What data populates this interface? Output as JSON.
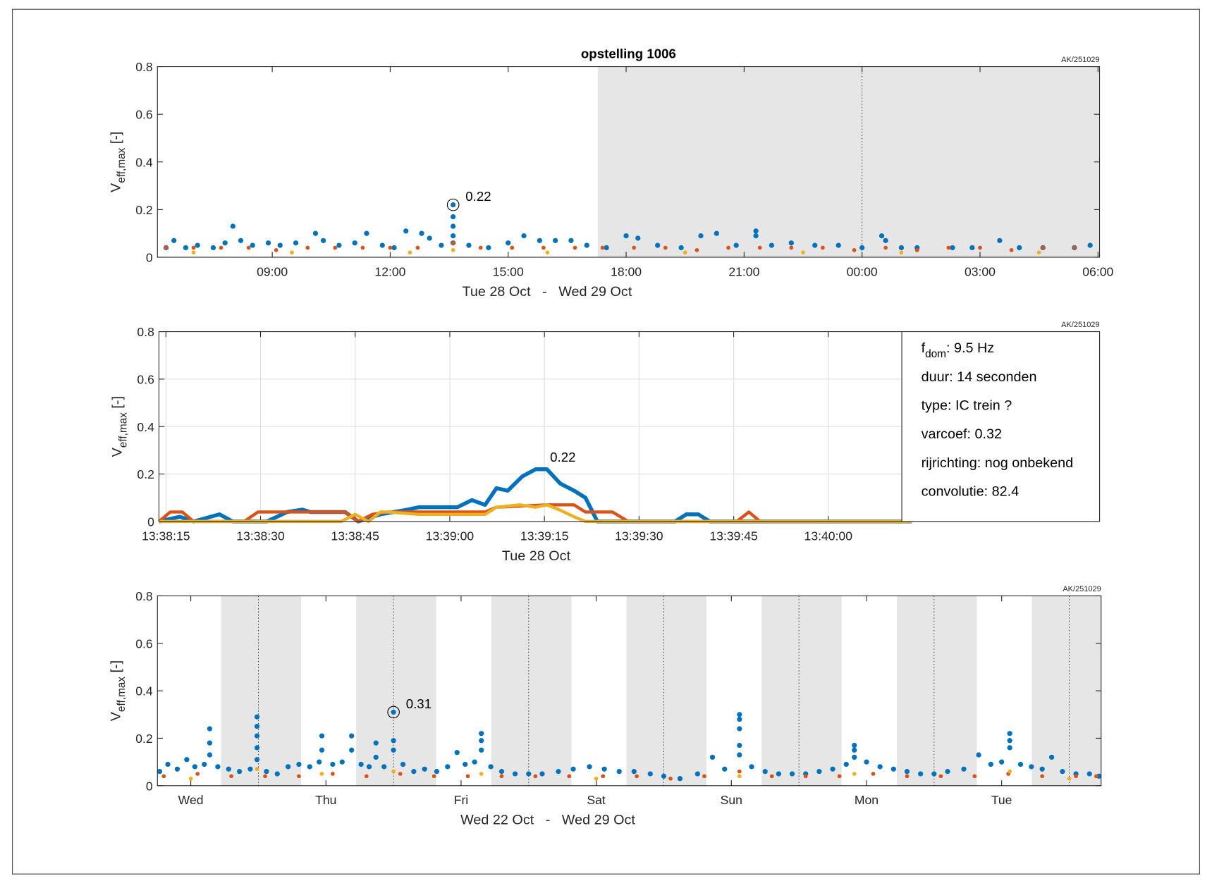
{
  "chart_data": [
    {
      "type": "scatter",
      "title": "opstelling 1006",
      "note": "AK/251029",
      "ylabel": {
        "symbol": "V",
        "subscript": "eff,max",
        "unit": "[-]"
      },
      "xlabel": "Tue 28 Oct   -   Wed 29 Oct",
      "xlim": [
        6.08,
        30.04
      ],
      "xticks": [
        {
          "value": 9,
          "label": "09:00"
        },
        {
          "value": 12,
          "label": "12:00"
        },
        {
          "value": 15,
          "label": "15:00"
        },
        {
          "value": 18,
          "label": "18:00"
        },
        {
          "value": 21,
          "label": "21:00"
        },
        {
          "value": 24,
          "label": "00:00"
        },
        {
          "value": 27,
          "label": "03:00"
        },
        {
          "value": 30,
          "label": "06:00"
        }
      ],
      "ylim": [
        0,
        0.8
      ],
      "yticks": [
        0,
        0.2,
        0.4,
        0.6,
        0.8
      ],
      "grid": false,
      "shade": [
        [
          17.28,
          30.04
        ]
      ],
      "vlines": [
        24
      ],
      "annotation": {
        "x": 13.6,
        "value": 0.22
      },
      "series": [
        {
          "color": "#0072BD",
          "x": [
            6.3,
            6.5,
            6.8,
            7.1,
            7.5,
            7.8,
            8.0,
            8.2,
            8.5,
            8.9,
            9.2,
            9.6,
            10.1,
            10.3,
            10.7,
            11.1,
            11.4,
            11.8,
            12.1,
            12.4,
            12.8,
            13.0,
            13.3,
            13.6,
            13.6,
            13.6,
            13.6,
            13.6,
            14.0,
            14.5,
            15.0,
            15.4,
            15.8,
            16.2,
            16.6,
            17.0,
            17.5,
            18.0,
            18.3,
            18.8,
            19.4,
            19.9,
            20.3,
            20.8,
            21.3,
            21.3,
            21.7,
            22.2,
            22.8,
            23.4,
            24.0,
            24.5,
            24.6,
            25.0,
            25.4,
            26.3,
            26.8,
            27.5,
            28.0,
            28.6,
            29.4,
            29.8
          ],
          "values": [
            0.04,
            0.07,
            0.04,
            0.05,
            0.04,
            0.06,
            0.13,
            0.07,
            0.05,
            0.06,
            0.05,
            0.06,
            0.1,
            0.07,
            0.05,
            0.06,
            0.1,
            0.05,
            0.04,
            0.11,
            0.1,
            0.08,
            0.05,
            0.22,
            0.17,
            0.13,
            0.09,
            0.06,
            0.05,
            0.04,
            0.06,
            0.09,
            0.07,
            0.07,
            0.07,
            0.05,
            0.04,
            0.09,
            0.08,
            0.05,
            0.04,
            0.09,
            0.1,
            0.05,
            0.11,
            0.09,
            0.05,
            0.06,
            0.05,
            0.05,
            0.04,
            0.09,
            0.07,
            0.04,
            0.04,
            0.04,
            0.04,
            0.07,
            0.04,
            0.04,
            0.04,
            0.05
          ]
        },
        {
          "color": "#D95319",
          "x": [
            6.3,
            7.0,
            7.7,
            8.4,
            9.1,
            9.9,
            10.6,
            11.3,
            12.0,
            12.7,
            13.6,
            14.3,
            15.1,
            15.9,
            16.7,
            17.4,
            18.2,
            19.0,
            19.8,
            20.6,
            21.4,
            22.2,
            23.0,
            23.8,
            24.6,
            25.4,
            26.2,
            27.0,
            27.8,
            28.6,
            29.4
          ],
          "values": [
            0.04,
            0.04,
            0.04,
            0.04,
            0.03,
            0.04,
            0.04,
            0.04,
            0.04,
            0.04,
            0.06,
            0.04,
            0.04,
            0.04,
            0.04,
            0.04,
            0.04,
            0.04,
            0.03,
            0.04,
            0.04,
            0.04,
            0.04,
            0.03,
            0.04,
            0.03,
            0.04,
            0.04,
            0.03,
            0.04,
            0.04
          ]
        },
        {
          "color": "#EDB120",
          "x": [
            7.0,
            9.5,
            12.5,
            13.6,
            16.0,
            19.5,
            22.5,
            25.0,
            28.5
          ],
          "values": [
            0.02,
            0.02,
            0.02,
            0.03,
            0.02,
            0.02,
            0.02,
            0.02,
            0.02
          ]
        }
      ]
    },
    {
      "type": "line",
      "note": "AK/251029",
      "ylabel": {
        "symbol": "V",
        "subscript": "eff,max",
        "unit": "[-]"
      },
      "xlabel": "Tue 28 Oct",
      "xlim": [
        13.9,
        163
      ],
      "xticks": [
        {
          "value": 15,
          "label": "13:38:15"
        },
        {
          "value": 30,
          "label": "13:38:30"
        },
        {
          "value": 45,
          "label": "13:38:45"
        },
        {
          "value": 60,
          "label": "13:39:00"
        },
        {
          "value": 75,
          "label": "13:39:15"
        },
        {
          "value": 90,
          "label": "13:39:30"
        },
        {
          "value": 105,
          "label": "13:39:45"
        },
        {
          "value": 120,
          "label": "13:40:00"
        }
      ],
      "ylim": [
        0,
        0.8
      ],
      "yticks": [
        0,
        0.2,
        0.4,
        0.6,
        0.8
      ],
      "grid": true,
      "annotation": {
        "x": 75.4,
        "value": 0.22
      },
      "info": [
        {
          "text": "f",
          "sub": "dom",
          "rest": ": 9.5 Hz"
        },
        {
          "text": "duur: 14 seconden"
        },
        {
          "text": "type: IC trein ?"
        },
        {
          "text": "varcoef: 0.32"
        },
        {
          "text": "rijrichting: nog onbekend"
        },
        {
          "text": "convolutie: 82.4"
        }
      ],
      "series": [
        {
          "color": "#0072BD",
          "x": [
            13.9,
            17.2,
            19.4,
            23.5,
            25.6,
            31,
            34.2,
            36.6,
            37.9,
            43.4,
            45.5,
            49,
            53.3,
            55.1,
            61.2,
            63.5,
            65.6,
            67.4,
            69.2,
            71.5,
            73.6,
            75.4,
            77.5,
            79.7,
            81.5,
            83.4,
            95.7,
            97.5,
            99.4,
            101.2,
            133.2
          ],
          "values": [
            0,
            0.02,
            0,
            0.03,
            0,
            0,
            0.04,
            0.05,
            0.04,
            0.04,
            0,
            0.03,
            0.05,
            0.06,
            0.06,
            0.09,
            0.07,
            0.14,
            0.13,
            0.19,
            0.22,
            0.22,
            0.16,
            0.13,
            0.1,
            0,
            0,
            0.03,
            0.03,
            0,
            0
          ]
        },
        {
          "color": "#D95319",
          "x": [
            13.9,
            15.7,
            17.6,
            19.4,
            27.4,
            29.6,
            36,
            43.4,
            45.5,
            47.7,
            50.2,
            65.6,
            67.4,
            75.4,
            79.7,
            81.5,
            85.8,
            88.3,
            105.5,
            107.4,
            109.2,
            133.2
          ],
          "values": [
            0,
            0.04,
            0.04,
            0,
            0,
            0.04,
            0.04,
            0.04,
            0,
            0.03,
            0.04,
            0.04,
            0.06,
            0.07,
            0.07,
            0.04,
            0.04,
            0,
            0,
            0.04,
            0,
            0
          ]
        },
        {
          "color": "#EDB120",
          "x": [
            13.9,
            42.8,
            45,
            47.1,
            49,
            50.2,
            55.1,
            65.6,
            67.4,
            71.1,
            73.6,
            75.4,
            77.3,
            79.7,
            81.5,
            133.2
          ],
          "values": [
            0,
            0,
            0.03,
            0,
            0.04,
            0.04,
            0.03,
            0.03,
            0.06,
            0.07,
            0.06,
            0.07,
            0.05,
            0.02,
            0,
            0
          ]
        }
      ]
    },
    {
      "type": "scatter",
      "note": "AK/251029",
      "ylabel": {
        "symbol": "V",
        "subscript": "eff,max",
        "unit": "[-]"
      },
      "xlabel": "Wed 22 Oct   -   Wed 29 Oct",
      "xlim": [
        0.253,
        7.236
      ],
      "xticks": [
        {
          "value": 0.5,
          "label": "Wed"
        },
        {
          "value": 1.5,
          "label": "Thu"
        },
        {
          "value": 2.5,
          "label": "Fri"
        },
        {
          "value": 3.5,
          "label": "Sat"
        },
        {
          "value": 4.5,
          "label": "Sun"
        },
        {
          "value": 5.5,
          "label": "Mon"
        },
        {
          "value": 6.5,
          "label": "Tue"
        }
      ],
      "ylim": [
        0,
        0.8
      ],
      "yticks": [
        0,
        0.2,
        0.4,
        0.6,
        0.8
      ],
      "grid": false,
      "shade": [
        [
          0.724,
          1.316
        ],
        [
          1.724,
          2.316
        ],
        [
          2.724,
          3.316
        ],
        [
          3.724,
          4.316
        ],
        [
          4.724,
          5.316
        ],
        [
          5.724,
          6.316
        ],
        [
          6.724,
          7.236
        ]
      ],
      "vlines": [
        1,
        2,
        3,
        4,
        5,
        6,
        7
      ],
      "annotation": {
        "x": 2.0,
        "value": 0.31
      },
      "series": [
        {
          "color": "#0072BD",
          "x": [
            0.27,
            0.33,
            0.4,
            0.47,
            0.53,
            0.6,
            0.64,
            0.64,
            0.64,
            0.7,
            0.78,
            0.86,
            0.94,
            0.99,
            0.99,
            0.99,
            0.99,
            0.99,
            1.06,
            1.14,
            1.22,
            1.3,
            1.38,
            1.45,
            1.47,
            1.47,
            1.55,
            1.62,
            1.69,
            1.69,
            1.76,
            1.82,
            1.87,
            1.87,
            1.93,
            2.0,
            2.0,
            2.0,
            2.07,
            2.15,
            2.23,
            2.32,
            2.4,
            2.47,
            2.53,
            2.6,
            2.65,
            2.65,
            2.65,
            2.72,
            2.8,
            2.9,
            3.0,
            3.1,
            3.22,
            3.33,
            3.45,
            3.56,
            3.67,
            3.78,
            3.9,
            4.0,
            4.12,
            4.25,
            4.36,
            4.45,
            4.56,
            4.56,
            4.56,
            4.56,
            4.56,
            4.65,
            4.75,
            4.85,
            4.95,
            5.05,
            5.15,
            5.25,
            5.35,
            5.41,
            5.41,
            5.41,
            5.5,
            5.6,
            5.7,
            5.8,
            5.9,
            6.0,
            6.1,
            6.22,
            6.33,
            6.42,
            6.5,
            6.56,
            6.56,
            6.56,
            6.64,
            6.72,
            6.8,
            6.87,
            6.95,
            7.05,
            7.15,
            7.22
          ],
          "values": [
            0.06,
            0.09,
            0.07,
            0.11,
            0.08,
            0.09,
            0.24,
            0.18,
            0.13,
            0.08,
            0.07,
            0.06,
            0.07,
            0.29,
            0.25,
            0.21,
            0.16,
            0.11,
            0.06,
            0.05,
            0.08,
            0.09,
            0.08,
            0.1,
            0.21,
            0.15,
            0.09,
            0.1,
            0.21,
            0.15,
            0.09,
            0.08,
            0.18,
            0.12,
            0.08,
            0.31,
            0.19,
            0.15,
            0.09,
            0.06,
            0.07,
            0.06,
            0.08,
            0.14,
            0.09,
            0.1,
            0.22,
            0.19,
            0.15,
            0.08,
            0.06,
            0.05,
            0.05,
            0.05,
            0.06,
            0.07,
            0.08,
            0.07,
            0.06,
            0.06,
            0.05,
            0.04,
            0.03,
            0.05,
            0.12,
            0.07,
            0.3,
            0.28,
            0.24,
            0.17,
            0.13,
            0.08,
            0.06,
            0.05,
            0.05,
            0.05,
            0.06,
            0.07,
            0.09,
            0.17,
            0.15,
            0.12,
            0.1,
            0.08,
            0.07,
            0.06,
            0.05,
            0.05,
            0.06,
            0.07,
            0.13,
            0.09,
            0.1,
            0.22,
            0.19,
            0.16,
            0.09,
            0.08,
            0.07,
            0.12,
            0.06,
            0.05,
            0.05,
            0.04
          ]
        },
        {
          "color": "#D95319",
          "x": [
            0.3,
            0.55,
            0.8,
            1.05,
            1.3,
            1.55,
            1.8,
            2.05,
            2.3,
            2.55,
            2.8,
            3.05,
            3.3,
            3.55,
            3.8,
            4.05,
            4.3,
            4.56,
            4.8,
            5.05,
            5.3,
            5.55,
            5.8,
            6.05,
            6.3,
            6.55,
            6.8,
            7.05,
            7.2
          ],
          "values": [
            0.04,
            0.05,
            0.04,
            0.04,
            0.04,
            0.05,
            0.04,
            0.05,
            0.04,
            0.04,
            0.04,
            0.04,
            0.04,
            0.04,
            0.04,
            0.03,
            0.04,
            0.06,
            0.04,
            0.04,
            0.04,
            0.05,
            0.04,
            0.04,
            0.04,
            0.05,
            0.04,
            0.04,
            0.04
          ]
        },
        {
          "color": "#EDB120",
          "x": [
            0.5,
            0.99,
            1.47,
            2.0,
            2.65,
            3.5,
            4.56,
            5.41,
            6.56,
            7.0
          ],
          "values": [
            0.03,
            0.07,
            0.05,
            0.06,
            0.05,
            0.03,
            0.04,
            0.05,
            0.06,
            0.03
          ]
        }
      ]
    }
  ]
}
